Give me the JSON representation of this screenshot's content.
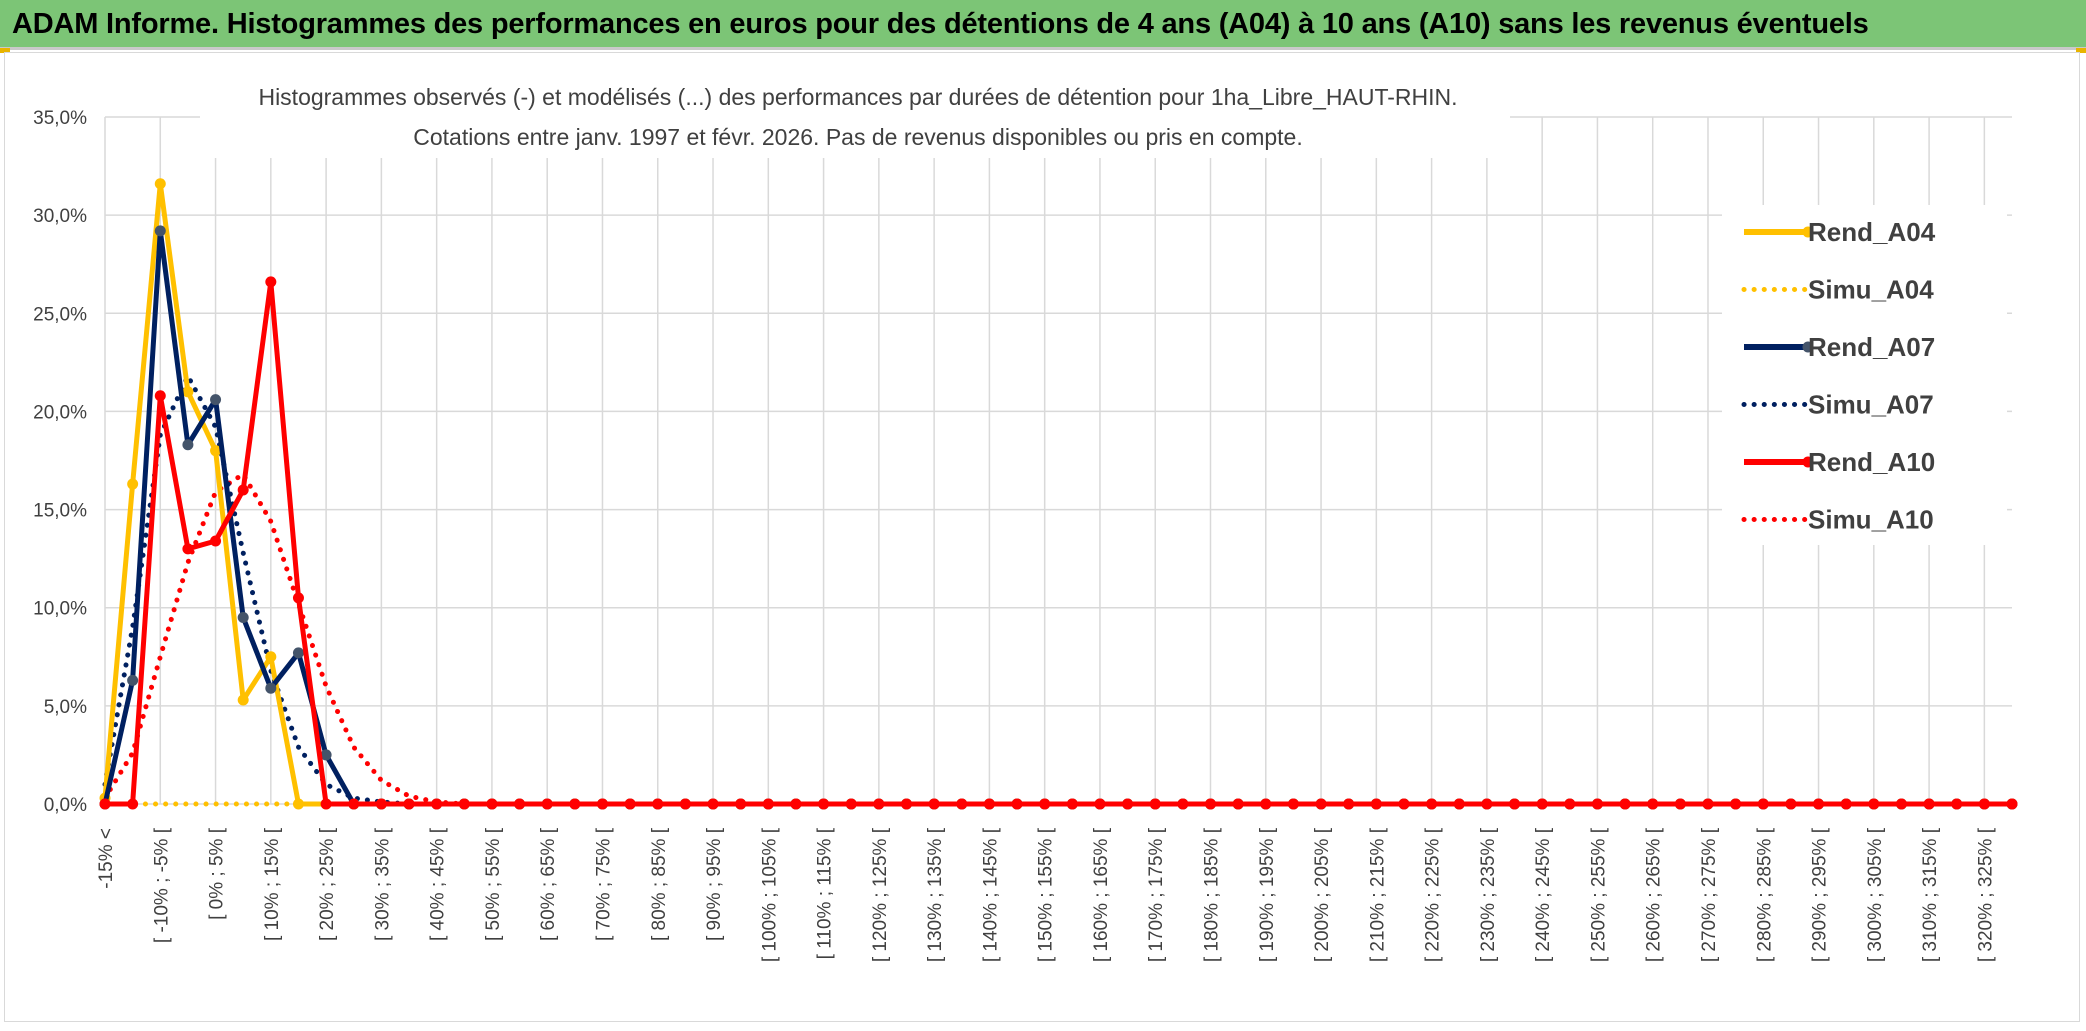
{
  "header": {
    "title": "ADAM Informe. Histogrammes des performances en euros pour des détentions de 4 ans (A04) à 10 ans (A10) sans les revenus éventuels"
  },
  "chart_data": {
    "type": "line",
    "title": "Histogrammes observés (-) et modélisés (...) des performances par durées de détention pour 1ha_Libre_HAUT-RHIN.",
    "subtitle": "Cotations entre janv. 1997 et févr. 2026. Pas de revenus disponibles ou pris en compte.",
    "xlabel": "",
    "ylabel": "",
    "ylim": [
      0,
      35
    ],
    "yticks": [
      0,
      5,
      10,
      15,
      20,
      25,
      30,
      35
    ],
    "ytick_labels": [
      "0,0%",
      "5,0%",
      "10,0%",
      "15,0%",
      "20,0%",
      "25,0%",
      "30,0%",
      "35,0%"
    ],
    "grid": true,
    "legend_position": "right",
    "x_labels": [
      "-15% <",
      "[ -10% ; -5% [",
      "[ 0% ; 5% [",
      "[ 10% ; 15% [",
      "[ 20% ; 25% [",
      "[ 30% ; 35% [",
      "[ 40% ; 45% [",
      "[ 50% ; 55% [",
      "[ 60% ; 65% [",
      "[ 70% ; 75% [",
      "[ 80% ; 85% [",
      "[ 90% ; 95% [",
      "[ 100% ; 105% [",
      "[ 110% ; 115% [",
      "[ 120% ; 125% [",
      "[ 130% ; 135% [",
      "[ 140% ; 145% [",
      "[ 150% ; 155% [",
      "[ 160% ; 165% [",
      "[ 170% ; 175% [",
      "[ 180% ; 185% [",
      "[ 190% ; 195% [",
      "[ 200% ; 205% [",
      "[ 210% ; 215% [",
      "[ 220% ; 225% [",
      "[ 230% ; 235% [",
      "[ 240% ; 245% [",
      "[ 250% ; 255% [",
      "[ 260% ; 265% [",
      "[ 270% ; 275% [",
      "[ 280% ; 285% [",
      "[ 290% ; 295% [",
      "[ 300% ; 305% [",
      "[ 310% ; 315% [",
      "[ 320% ; 325% ["
    ],
    "categories_count": 70,
    "series": [
      {
        "name": "Rend_A04",
        "style": "solid",
        "color": "#FFC000",
        "values": [
          0.3,
          16.3,
          31.6,
          21.0,
          18.0,
          5.3,
          7.5,
          0.0
        ]
      },
      {
        "name": "Simu_A04",
        "style": "dotted",
        "color": "#FFC000",
        "values": [
          0,
          0,
          0,
          0,
          0,
          0,
          0,
          0
        ]
      },
      {
        "name": "Rend_A07",
        "style": "solid",
        "color": "#002060",
        "values": [
          0.0,
          6.3,
          29.2,
          18.3,
          20.6,
          9.5,
          5.9,
          7.7,
          2.5,
          0.0
        ]
      },
      {
        "name": "Simu_A07",
        "style": "dotted",
        "color": "#002060",
        "values": [
          1.0,
          9.0,
          18.8,
          21.8,
          19.2,
          12.8,
          6.8,
          2.9,
          1.0,
          0.3,
          0.1,
          0.0
        ]
      },
      {
        "name": "Rend_A10",
        "style": "solid",
        "color": "#FF0000",
        "values": [
          0.0,
          0.0,
          20.8,
          13.0,
          13.4,
          16.0,
          26.6,
          10.5,
          0.0,
          0.0,
          0.0,
          0.0,
          0.0,
          0.0,
          0.0,
          0.0,
          0.0,
          0.0,
          0.0,
          0.0,
          0.0,
          0.0,
          0.0,
          0.0,
          0.0,
          0.0,
          0.0,
          0.0,
          0.0,
          0.0,
          0.0,
          0.0,
          0.0,
          0.0,
          0.0,
          0.0,
          0.0,
          0.0,
          0.0,
          0.0,
          0.0,
          0.0,
          0.0,
          0.0,
          0.0,
          0.0,
          0.0,
          0.0,
          0.0,
          0.0,
          0.0,
          0.0,
          0.0,
          0.0,
          0.0,
          0.0,
          0.0,
          0.0,
          0.0,
          0.0,
          0.0,
          0.0,
          0.0,
          0.0,
          0.0,
          0.0,
          0.0,
          0.0,
          0.0,
          0.0
        ]
      },
      {
        "name": "Simu_A10",
        "style": "dotted",
        "color": "#FF0000",
        "values": [
          0.3,
          2.6,
          7.5,
          12.3,
          15.9,
          16.8,
          14.4,
          10.2,
          6.0,
          2.9,
          1.2,
          0.4,
          0.1,
          0.0
        ]
      }
    ]
  }
}
